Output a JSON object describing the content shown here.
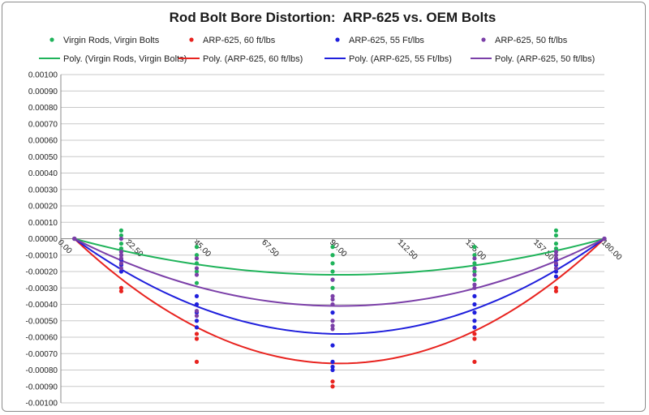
{
  "chart_data": {
    "type": "scatter",
    "title": "Rod Bolt Bore Distortion:  ARP-625 vs. OEM Bolts",
    "xlabel": "",
    "ylabel": "",
    "xlim": [
      0,
      180
    ],
    "ylim": [
      -0.001,
      0.001
    ],
    "x_ticks": [
      "0.00",
      "22.50",
      "45.00",
      "67.50",
      "90.00",
      "112.50",
      "135.00",
      "157.50",
      "180.00"
    ],
    "x_tick_values": [
      0,
      22.5,
      45,
      67.5,
      90,
      112.5,
      135,
      157.5,
      180
    ],
    "y_ticks": [
      "0.00100",
      "0.00090",
      "0.00080",
      "0.00070",
      "0.00060",
      "0.00050",
      "0.00040",
      "0.00030",
      "0.00020",
      "0.00010",
      "0.00000",
      "-0.00010",
      "-0.00020",
      "-0.00030",
      "-0.00040",
      "-0.00050",
      "-0.00060",
      "-0.00070",
      "-0.00080",
      "-0.00090",
      "-0.00100"
    ],
    "y_tick_values": [
      0.001,
      0.0009,
      0.0008,
      0.0007,
      0.0006,
      0.0005,
      0.0004,
      0.0003,
      0.0002,
      0.0001,
      0,
      -0.0001,
      -0.0002,
      -0.0003,
      -0.0004,
      -0.0005,
      -0.0006,
      -0.0007,
      -0.0008,
      -0.0009,
      -0.001
    ],
    "grid": true,
    "legend_position": "top",
    "series": [
      {
        "name": "Virgin Rods, Virgin Bolts",
        "color": "#1fb35a",
        "points": [
          {
            "x": 4.5,
            "y": 0
          },
          {
            "x": 20,
            "y": 5e-05
          },
          {
            "x": 20,
            "y": 2e-05
          },
          {
            "x": 20,
            "y": -3e-05
          },
          {
            "x": 20,
            "y": -6e-05
          },
          {
            "x": 20,
            "y": -0.0001
          },
          {
            "x": 45,
            "y": -5e-05
          },
          {
            "x": 45,
            "y": -0.0001
          },
          {
            "x": 45,
            "y": -0.00015
          },
          {
            "x": 45,
            "y": -0.0002
          },
          {
            "x": 45,
            "y": -0.00027
          },
          {
            "x": 90,
            "y": -5e-05
          },
          {
            "x": 90,
            "y": -0.0001
          },
          {
            "x": 90,
            "y": -0.00015
          },
          {
            "x": 90,
            "y": -0.0002
          },
          {
            "x": 90,
            "y": -0.00025
          },
          {
            "x": 90,
            "y": -0.0003
          },
          {
            "x": 137,
            "y": -5e-05
          },
          {
            "x": 137,
            "y": -0.0001
          },
          {
            "x": 137,
            "y": -0.00015
          },
          {
            "x": 137,
            "y": -0.0002
          },
          {
            "x": 137,
            "y": -0.00025
          },
          {
            "x": 164,
            "y": 5e-05
          },
          {
            "x": 164,
            "y": 2e-05
          },
          {
            "x": 164,
            "y": -3e-05
          },
          {
            "x": 164,
            "y": -6e-05
          },
          {
            "x": 180,
            "y": 0
          }
        ],
        "trendline": {
          "name": "Poly. (Virgin Rods, Virgin Bolts)",
          "min_at_x": 92,
          "min_y": -0.00022
        }
      },
      {
        "name": "ARP-625, 60 ft/lbs",
        "color": "#e8231f",
        "points": [
          {
            "x": 4.5,
            "y": 0
          },
          {
            "x": 20,
            "y": -0.0003
          },
          {
            "x": 20,
            "y": -0.00032
          },
          {
            "x": 45,
            "y": -0.00058
          },
          {
            "x": 45,
            "y": -0.00061
          },
          {
            "x": 45,
            "y": -0.00075
          },
          {
            "x": 90,
            "y": -0.00087
          },
          {
            "x": 90,
            "y": -0.0009
          },
          {
            "x": 137,
            "y": -0.00058
          },
          {
            "x": 137,
            "y": -0.00061
          },
          {
            "x": 137,
            "y": -0.00075
          },
          {
            "x": 164,
            "y": -0.0003
          },
          {
            "x": 164,
            "y": -0.00032
          },
          {
            "x": 180,
            "y": 0
          }
        ],
        "trendline": {
          "name": "Poly. (ARP-625, 60 ft/lbs)",
          "min_at_x": 92,
          "min_y": -0.00076
        }
      },
      {
        "name": "ARP-625, 55 Ft/lbs",
        "color": "#1f1fdc",
        "points": [
          {
            "x": 4.5,
            "y": 0
          },
          {
            "x": 20,
            "y": -0.00013
          },
          {
            "x": 20,
            "y": -0.00016
          },
          {
            "x": 20,
            "y": -0.0002
          },
          {
            "x": 45,
            "y": -0.00035
          },
          {
            "x": 45,
            "y": -0.0004
          },
          {
            "x": 45,
            "y": -0.00045
          },
          {
            "x": 45,
            "y": -0.0005
          },
          {
            "x": 45,
            "y": -0.00054
          },
          {
            "x": 90,
            "y": -0.00045
          },
          {
            "x": 90,
            "y": -0.00065
          },
          {
            "x": 90,
            "y": -0.00075
          },
          {
            "x": 90,
            "y": -0.00078
          },
          {
            "x": 90,
            "y": -0.0008
          },
          {
            "x": 137,
            "y": -0.00035
          },
          {
            "x": 137,
            "y": -0.0004
          },
          {
            "x": 137,
            "y": -0.00045
          },
          {
            "x": 137,
            "y": -0.0005
          },
          {
            "x": 137,
            "y": -0.00054
          },
          {
            "x": 164,
            "y": -0.00013
          },
          {
            "x": 164,
            "y": -0.00016
          },
          {
            "x": 164,
            "y": -0.0002
          },
          {
            "x": 164,
            "y": -0.00023
          },
          {
            "x": 180,
            "y": 0
          }
        ],
        "trendline": {
          "name": "Poly. (ARP-625, 55 Ft/lbs)",
          "min_at_x": 92,
          "min_y": -0.00058
        }
      },
      {
        "name": "ARP-625, 50 ft/lbs",
        "color": "#7b3fa8",
        "points": [
          {
            "x": 4.5,
            "y": 0
          },
          {
            "x": 20,
            "y": 0
          },
          {
            "x": 20,
            "y": -8e-05
          },
          {
            "x": 20,
            "y": -0.0001
          },
          {
            "x": 20,
            "y": -0.00012
          },
          {
            "x": 20,
            "y": -0.00015
          },
          {
            "x": 20,
            "y": -0.00018
          },
          {
            "x": 45,
            "y": -0.00012
          },
          {
            "x": 45,
            "y": -0.00018
          },
          {
            "x": 45,
            "y": -0.00022
          },
          {
            "x": 45,
            "y": -0.00044
          },
          {
            "x": 45,
            "y": -0.00047
          },
          {
            "x": 90,
            "y": -0.00025
          },
          {
            "x": 90,
            "y": -0.00035
          },
          {
            "x": 90,
            "y": -0.00037
          },
          {
            "x": 90,
            "y": -0.0004
          },
          {
            "x": 90,
            "y": -0.0005
          },
          {
            "x": 90,
            "y": -0.00053
          },
          {
            "x": 90,
            "y": -0.00055
          },
          {
            "x": 137,
            "y": -0.00012
          },
          {
            "x": 137,
            "y": -0.00018
          },
          {
            "x": 137,
            "y": -0.00022
          },
          {
            "x": 137,
            "y": -0.00028
          },
          {
            "x": 137,
            "y": -0.0003
          },
          {
            "x": 164,
            "y": -8e-05
          },
          {
            "x": 164,
            "y": -0.0001
          },
          {
            "x": 164,
            "y": -0.00012
          },
          {
            "x": 164,
            "y": -0.00015
          },
          {
            "x": 164,
            "y": -0.00018
          },
          {
            "x": 180,
            "y": 0
          }
        ],
        "trendline": {
          "name": "Poly. (ARP-625, 50 ft/lbs)",
          "min_at_x": 92,
          "min_y": -0.00041
        }
      }
    ]
  }
}
